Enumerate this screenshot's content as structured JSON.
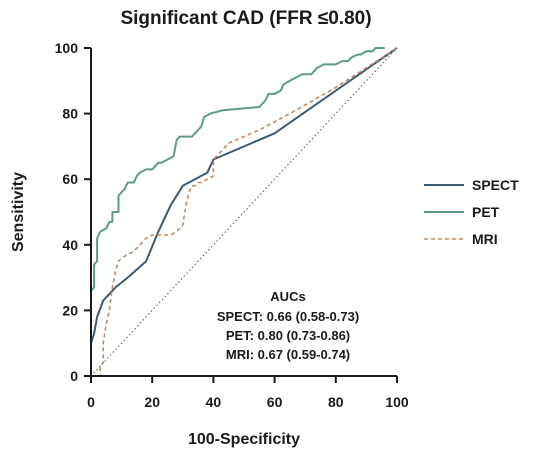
{
  "chart_data": {
    "type": "line",
    "title": "Significant CAD (FFR ≤0.80)",
    "xlabel": "100-Specificity",
    "ylabel": "Sensitivity",
    "xlim": [
      0,
      100
    ],
    "ylim": [
      0,
      100
    ],
    "xticks": [
      0,
      20,
      40,
      60,
      80,
      100
    ],
    "yticks": [
      0,
      20,
      40,
      60,
      80,
      100
    ],
    "grid": false,
    "legend_position": "right",
    "reference_line": {
      "style": "dotted",
      "x": [
        0,
        100
      ],
      "y": [
        0,
        100
      ]
    },
    "series": [
      {
        "name": "SPECT",
        "color": "#3d5a73",
        "style": "solid",
        "x": [
          0,
          0,
          1,
          2,
          4,
          8,
          12,
          18,
          22,
          26,
          30,
          34,
          38,
          40,
          60,
          100
        ],
        "y": [
          0,
          10,
          13,
          18,
          23,
          27,
          30,
          35,
          44,
          52,
          58,
          60,
          62,
          66,
          74,
          100
        ]
      },
      {
        "name": "PET",
        "color": "#5e9c82",
        "style": "solid",
        "x": [
          0,
          0,
          1,
          1,
          2,
          2,
          3,
          5,
          6,
          7,
          7,
          9,
          9,
          11,
          12,
          14,
          15,
          16,
          18,
          20,
          21,
          22,
          23,
          25,
          27,
          28,
          29,
          32,
          33,
          34,
          35,
          36,
          37,
          39,
          43,
          55,
          57,
          58,
          60,
          62,
          63,
          65,
          67,
          69,
          70,
          72,
          74,
          76,
          78,
          80,
          82,
          84,
          85,
          87,
          88,
          90,
          91,
          92,
          93,
          95,
          96,
          96
        ],
        "y": [
          0,
          26,
          27,
          34,
          35,
          42,
          44,
          45,
          47,
          47,
          50,
          50,
          55,
          57,
          59,
          59,
          61,
          62,
          63,
          63,
          64,
          65,
          65,
          66,
          67,
          72,
          73,
          73,
          73,
          74,
          75,
          76,
          79,
          80,
          81,
          82,
          84,
          86,
          86,
          87,
          89,
          90,
          91,
          92,
          92,
          92,
          94,
          95,
          95,
          95,
          96,
          96,
          97,
          98,
          98,
          99,
          99,
          99,
          100,
          100,
          100,
          100
        ]
      },
      {
        "name": "MRI",
        "color": "#c48a5e",
        "style": "dashed",
        "x": [
          0,
          3,
          3,
          4,
          4,
          5,
          6,
          7,
          8,
          9,
          10,
          12,
          14,
          16,
          18,
          20,
          22,
          24,
          26,
          28,
          30,
          31,
          32,
          33,
          34,
          35,
          36,
          38,
          40,
          40,
          45,
          55,
          65,
          80,
          100
        ],
        "y": [
          0,
          0,
          3,
          4,
          10,
          16,
          20,
          27,
          32,
          35,
          36,
          37,
          38,
          40,
          42,
          43,
          43,
          43,
          43,
          44,
          46,
          52,
          56,
          58,
          58,
          59,
          59,
          60,
          61,
          66,
          71,
          75,
          80,
          88,
          100
        ]
      }
    ],
    "annotation": {
      "heading": "AUCs",
      "lines": [
        "SPECT: 0.66 (0.58-0.73)",
        "PET: 0.80 (0.73-0.86)",
        "MRI: 0.67 (0.59-0.74)"
      ]
    }
  }
}
